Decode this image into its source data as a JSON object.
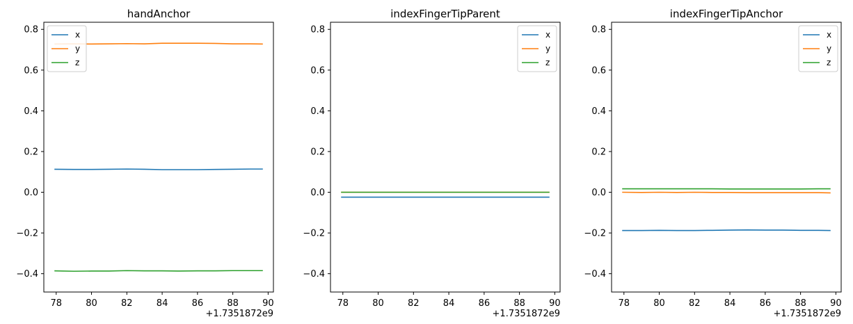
{
  "chart_data": [
    {
      "type": "line",
      "title": "handAnchor",
      "xlabel": "",
      "ylabel": "",
      "x_offset_label": "+1.7351872e9",
      "xlim": [
        77.3,
        90.3
      ],
      "ylim": [
        -0.49,
        0.835
      ],
      "xticks": [
        78,
        80,
        82,
        84,
        86,
        88,
        90
      ],
      "yticks": [
        -0.4,
        -0.2,
        0.0,
        0.2,
        0.4,
        0.6,
        0.8
      ],
      "xtick_labels": [
        "78",
        "80",
        "82",
        "84",
        "86",
        "88",
        "90"
      ],
      "ytick_labels": [
        "−0.4",
        "−0.2",
        "0.0",
        "0.2",
        "0.4",
        "0.6",
        "0.8"
      ],
      "grid": false,
      "legend_position": "top-left",
      "x": [
        77.9,
        79.0,
        80.0,
        81.0,
        82.0,
        83.0,
        84.0,
        85.0,
        86.0,
        87.0,
        88.0,
        89.0,
        89.7
      ],
      "series": [
        {
          "name": "x",
          "color": "#1f77b4",
          "values": [
            0.113,
            0.112,
            0.112,
            0.113,
            0.114,
            0.113,
            0.111,
            0.111,
            0.111,
            0.112,
            0.113,
            0.114,
            0.114
          ]
        },
        {
          "name": "y",
          "color": "#ff7f0e",
          "values": [
            0.728,
            0.729,
            0.728,
            0.729,
            0.73,
            0.729,
            0.732,
            0.732,
            0.732,
            0.731,
            0.729,
            0.729,
            0.728
          ]
        },
        {
          "name": "z",
          "color": "#2ca02c",
          "values": [
            -0.386,
            -0.388,
            -0.387,
            -0.387,
            -0.385,
            -0.386,
            -0.386,
            -0.387,
            -0.386,
            -0.386,
            -0.385,
            -0.385,
            -0.385
          ]
        }
      ]
    },
    {
      "type": "line",
      "title": "indexFingerTipParent",
      "xlabel": "",
      "ylabel": "",
      "x_offset_label": "+1.7351872e9",
      "xlim": [
        77.3,
        90.3
      ],
      "ylim": [
        -0.49,
        0.835
      ],
      "xticks": [
        78,
        80,
        82,
        84,
        86,
        88,
        90
      ],
      "yticks": [
        -0.4,
        -0.2,
        0.0,
        0.2,
        0.4,
        0.6,
        0.8
      ],
      "xtick_labels": [
        "78",
        "80",
        "82",
        "84",
        "86",
        "88",
        "90"
      ],
      "ytick_labels": [
        "−0.4",
        "−0.2",
        "0.0",
        "0.2",
        "0.4",
        "0.6",
        "0.8"
      ],
      "grid": false,
      "legend_position": "top-right",
      "x": [
        77.9,
        79.0,
        80.0,
        81.0,
        82.0,
        83.0,
        84.0,
        85.0,
        86.0,
        87.0,
        88.0,
        89.0,
        89.7
      ],
      "series": [
        {
          "name": "x",
          "color": "#1f77b4",
          "values": [
            -0.024,
            -0.024,
            -0.024,
            -0.024,
            -0.024,
            -0.024,
            -0.024,
            -0.024,
            -0.024,
            -0.024,
            -0.024,
            -0.024,
            -0.024
          ]
        },
        {
          "name": "y",
          "color": "#ff7f0e",
          "values": [
            0.0,
            0.0,
            0.0,
            0.0,
            0.0,
            0.0,
            0.0,
            0.0,
            0.0,
            0.0,
            0.0,
            0.0,
            0.0
          ]
        },
        {
          "name": "z",
          "color": "#2ca02c",
          "values": [
            0.0,
            0.0,
            0.0,
            0.0,
            0.0,
            0.0,
            0.0,
            0.0,
            0.0,
            0.0,
            0.0,
            0.0,
            0.0
          ]
        }
      ]
    },
    {
      "type": "line",
      "title": "indexFingerTipAnchor",
      "xlabel": "",
      "ylabel": "",
      "x_offset_label": "+1.7351872e9",
      "xlim": [
        77.3,
        90.3
      ],
      "ylim": [
        -0.49,
        0.835
      ],
      "xticks": [
        78,
        80,
        82,
        84,
        86,
        88,
        90
      ],
      "yticks": [
        -0.4,
        -0.2,
        0.0,
        0.2,
        0.4,
        0.6,
        0.8
      ],
      "xtick_labels": [
        "78",
        "80",
        "82",
        "84",
        "86",
        "88",
        "90"
      ],
      "ytick_labels": [
        "−0.4",
        "−0.2",
        "0.0",
        "0.2",
        "0.4",
        "0.6",
        "0.8"
      ],
      "grid": false,
      "legend_position": "top-right",
      "x": [
        77.9,
        79.0,
        80.0,
        81.0,
        82.0,
        83.0,
        84.0,
        85.0,
        86.0,
        87.0,
        88.0,
        89.0,
        89.7
      ],
      "series": [
        {
          "name": "x",
          "color": "#1f77b4",
          "values": [
            -0.188,
            -0.188,
            -0.187,
            -0.188,
            -0.188,
            -0.187,
            -0.186,
            -0.185,
            -0.186,
            -0.186,
            -0.187,
            -0.187,
            -0.188
          ]
        },
        {
          "name": "y",
          "color": "#ff7f0e",
          "values": [
            0.0,
            -0.001,
            0.0,
            -0.001,
            0.0,
            -0.001,
            -0.001,
            -0.002,
            -0.002,
            -0.002,
            -0.002,
            -0.002,
            -0.003
          ]
        },
        {
          "name": "z",
          "color": "#2ca02c",
          "values": [
            0.017,
            0.017,
            0.017,
            0.017,
            0.017,
            0.017,
            0.016,
            0.016,
            0.016,
            0.016,
            0.016,
            0.017,
            0.017
          ]
        }
      ]
    }
  ]
}
